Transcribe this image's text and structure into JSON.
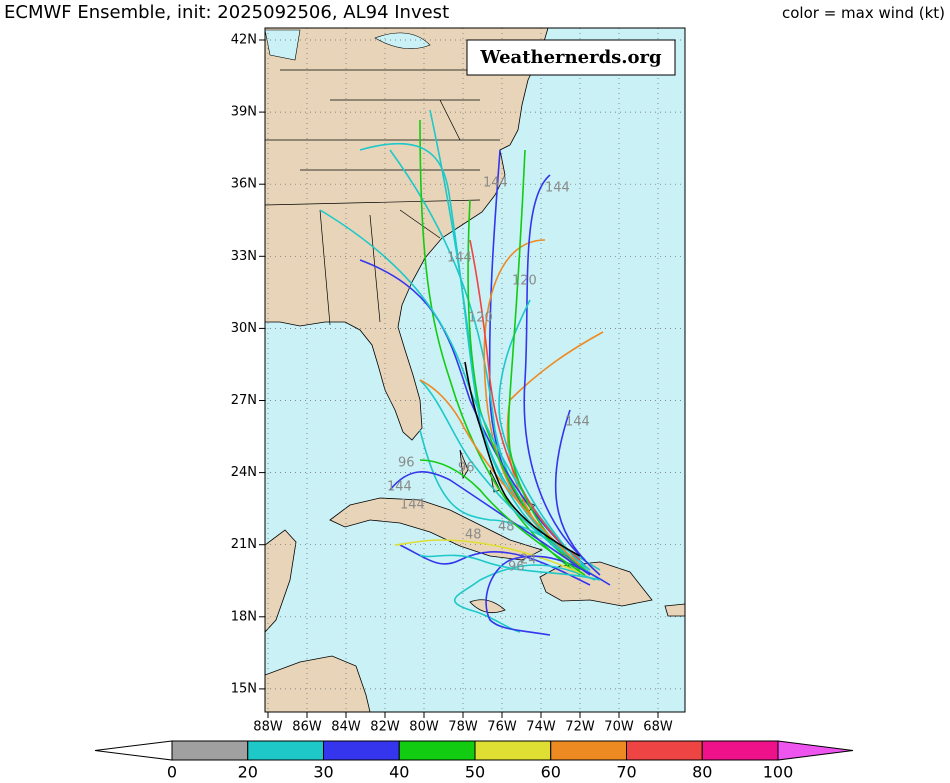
{
  "header": {
    "title": "ECMWF Ensemble, init: 2025092506, AL94 Invest",
    "legend_label": "color = max wind (kt)"
  },
  "watermark": "Weathernerds.org",
  "map": {
    "lat_ticks": [
      "42N",
      "39N",
      "36N",
      "33N",
      "30N",
      "27N",
      "24N",
      "21N",
      "18N",
      "15N"
    ],
    "lon_ticks": [
      "88W",
      "86W",
      "84W",
      "82W",
      "80W",
      "78W",
      "76W",
      "74W",
      "72W",
      "70W",
      "68W"
    ],
    "annotations": [
      "144",
      "144",
      "144",
      "120",
      "144",
      "120",
      "96",
      "144",
      "96",
      "144",
      "48",
      "48",
      "24",
      "96"
    ]
  },
  "colorbar": {
    "labels": [
      "0",
      "20",
      "30",
      "40",
      "50",
      "60",
      "70",
      "80",
      "100"
    ],
    "colors": [
      "#ffffff",
      "#a0a0a0",
      "#1ec8c8",
      "#3535ee",
      "#11cc11",
      "#dede33",
      "#ee8a22",
      "#ee4444",
      "#ee1189",
      "#ee55ee"
    ]
  }
}
